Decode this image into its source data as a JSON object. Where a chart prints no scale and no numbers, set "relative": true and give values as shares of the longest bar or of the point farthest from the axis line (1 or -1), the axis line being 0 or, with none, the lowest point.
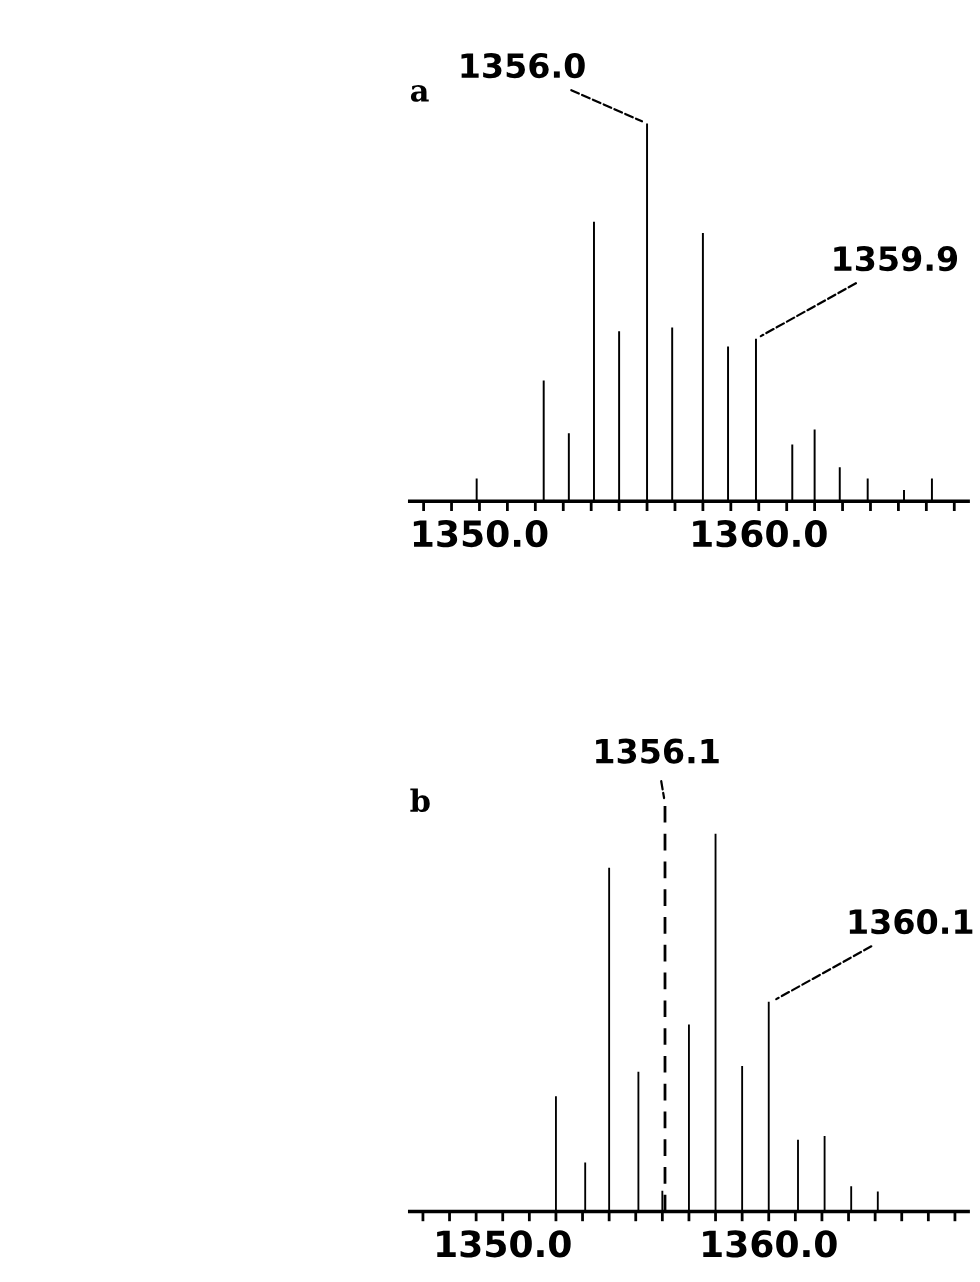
{
  "chart_data": [
    {
      "type": "bar",
      "title": "a",
      "relative": true,
      "x": [
        1349.9,
        1352.3,
        1353.2,
        1354.1,
        1355.0,
        1356.0,
        1356.9,
        1358.0,
        1358.9,
        1359.9,
        1361.2,
        1362.0,
        1362.9,
        1363.9,
        1365.2,
        1366.2
      ],
      "values": [
        0.06,
        0.32,
        0.18,
        0.74,
        0.45,
        1,
        0.46,
        0.71,
        0.41,
        0.43,
        0.15,
        0.19,
        0.09,
        0.06,
        0.03,
        0.06
      ],
      "color": "#000000",
      "xlim": [
        1347.5,
        1367.5
      ],
      "xticks": [
        {
          "value": 1348,
          "label": null
        },
        {
          "value": 1349,
          "label": null
        },
        {
          "value": 1350,
          "label": "1350.0"
        },
        {
          "value": 1351,
          "label": null
        },
        {
          "value": 1352,
          "label": null
        },
        {
          "value": 1353,
          "label": null
        },
        {
          "value": 1354,
          "label": null
        },
        {
          "value": 1355,
          "label": null
        },
        {
          "value": 1356,
          "label": null
        },
        {
          "value": 1357,
          "label": null
        },
        {
          "value": 1358,
          "label": null
        },
        {
          "value": 1359,
          "label": null
        },
        {
          "value": 1360,
          "label": "1360.0"
        },
        {
          "value": 1361,
          "label": null
        },
        {
          "value": 1362,
          "label": null
        },
        {
          "value": 1363,
          "label": null
        },
        {
          "value": 1364,
          "label": null
        },
        {
          "value": 1365,
          "label": null
        },
        {
          "value": 1366,
          "label": null
        },
        {
          "value": 1367,
          "label": null
        }
      ],
      "tick_labels": "x",
      "annotations": [
        {
          "text": "1356.0",
          "x": 1356.0,
          "y": 1
        },
        {
          "text": "1359.9",
          "x": 1359.9,
          "y": 0.43
        }
      ]
    },
    {
      "type": "bar",
      "title": "b",
      "relative": true,
      "x": [
        1352.0,
        1353.1,
        1354.0,
        1355.1,
        1356.0,
        1357.0,
        1358.0,
        1359.0,
        1360.0,
        1361.1,
        1362.1,
        1363.1,
        1364.1
      ],
      "values": [
        0.305,
        0.13,
        0.91,
        0.37,
        0.055,
        0.495,
        1,
        0.385,
        0.555,
        0.19,
        0.2,
        0.067,
        0.053
      ],
      "color": "#000000",
      "xlim": [
        1346.5,
        1367.5
      ],
      "xticks": [
        {
          "value": 1347,
          "label": null
        },
        {
          "value": 1348,
          "label": null
        },
        {
          "value": 1349,
          "label": null
        },
        {
          "value": 1350,
          "label": "1350.0"
        },
        {
          "value": 1351,
          "label": null
        },
        {
          "value": 1352,
          "label": null
        },
        {
          "value": 1353,
          "label": null
        },
        {
          "value": 1354,
          "label": null
        },
        {
          "value": 1355,
          "label": null
        },
        {
          "value": 1356,
          "label": null
        },
        {
          "value": 1357,
          "label": null
        },
        {
          "value": 1358,
          "label": null
        },
        {
          "value": 1359,
          "label": null
        },
        {
          "value": 1360,
          "label": "1360.0"
        },
        {
          "value": 1361,
          "label": null
        },
        {
          "value": 1362,
          "label": null
        },
        {
          "value": 1363,
          "label": null
        },
        {
          "value": 1364,
          "label": null
        },
        {
          "value": 1365,
          "label": null
        },
        {
          "value": 1366,
          "label": null
        },
        {
          "value": 1367,
          "label": null
        }
      ],
      "tick_labels": "x",
      "ref_lines": [
        {
          "axis": "x",
          "value": 1356.1,
          "label": "1356.1",
          "color": "#000000",
          "line_style": "dashed"
        }
      ],
      "annotations": [
        {
          "text": "1360.1",
          "x": 1360.1,
          "y": 0.555
        }
      ]
    }
  ]
}
